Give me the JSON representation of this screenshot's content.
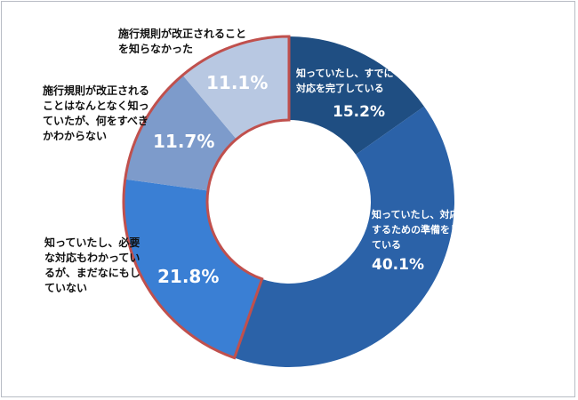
{
  "chart_data": {
    "type": "pie",
    "style": "donut",
    "slices": [
      {
        "label": "知っていたし、すでに\n対応を完了している",
        "value": 15.2,
        "value_label": "15.2%",
        "color": "#1f4e82"
      },
      {
        "label": "知っていたし、対応\nするための準備をし\nている",
        "value": 40.1,
        "value_label": "40.1%",
        "color": "#2b62a8"
      },
      {
        "label": "知っていたし、必要\nな対応もわかってい\nるが、まだなにもし\nていない",
        "value": 21.8,
        "value_label": "21.8%",
        "color": "#3a7fd4"
      },
      {
        "label": "施行規則が改正される\nことはなんとなく知っ\nていたが、何をすべき\nかわからない",
        "value": 11.7,
        "value_label": "11.7%",
        "color": "#7d9bcb"
      },
      {
        "label": "施行規則が改正されること\nを知らなかった",
        "value": 11.1,
        "value_label": "11.1%",
        "color": "#b8c8e2"
      }
    ],
    "highlight_outline_color": "#c0504d"
  }
}
